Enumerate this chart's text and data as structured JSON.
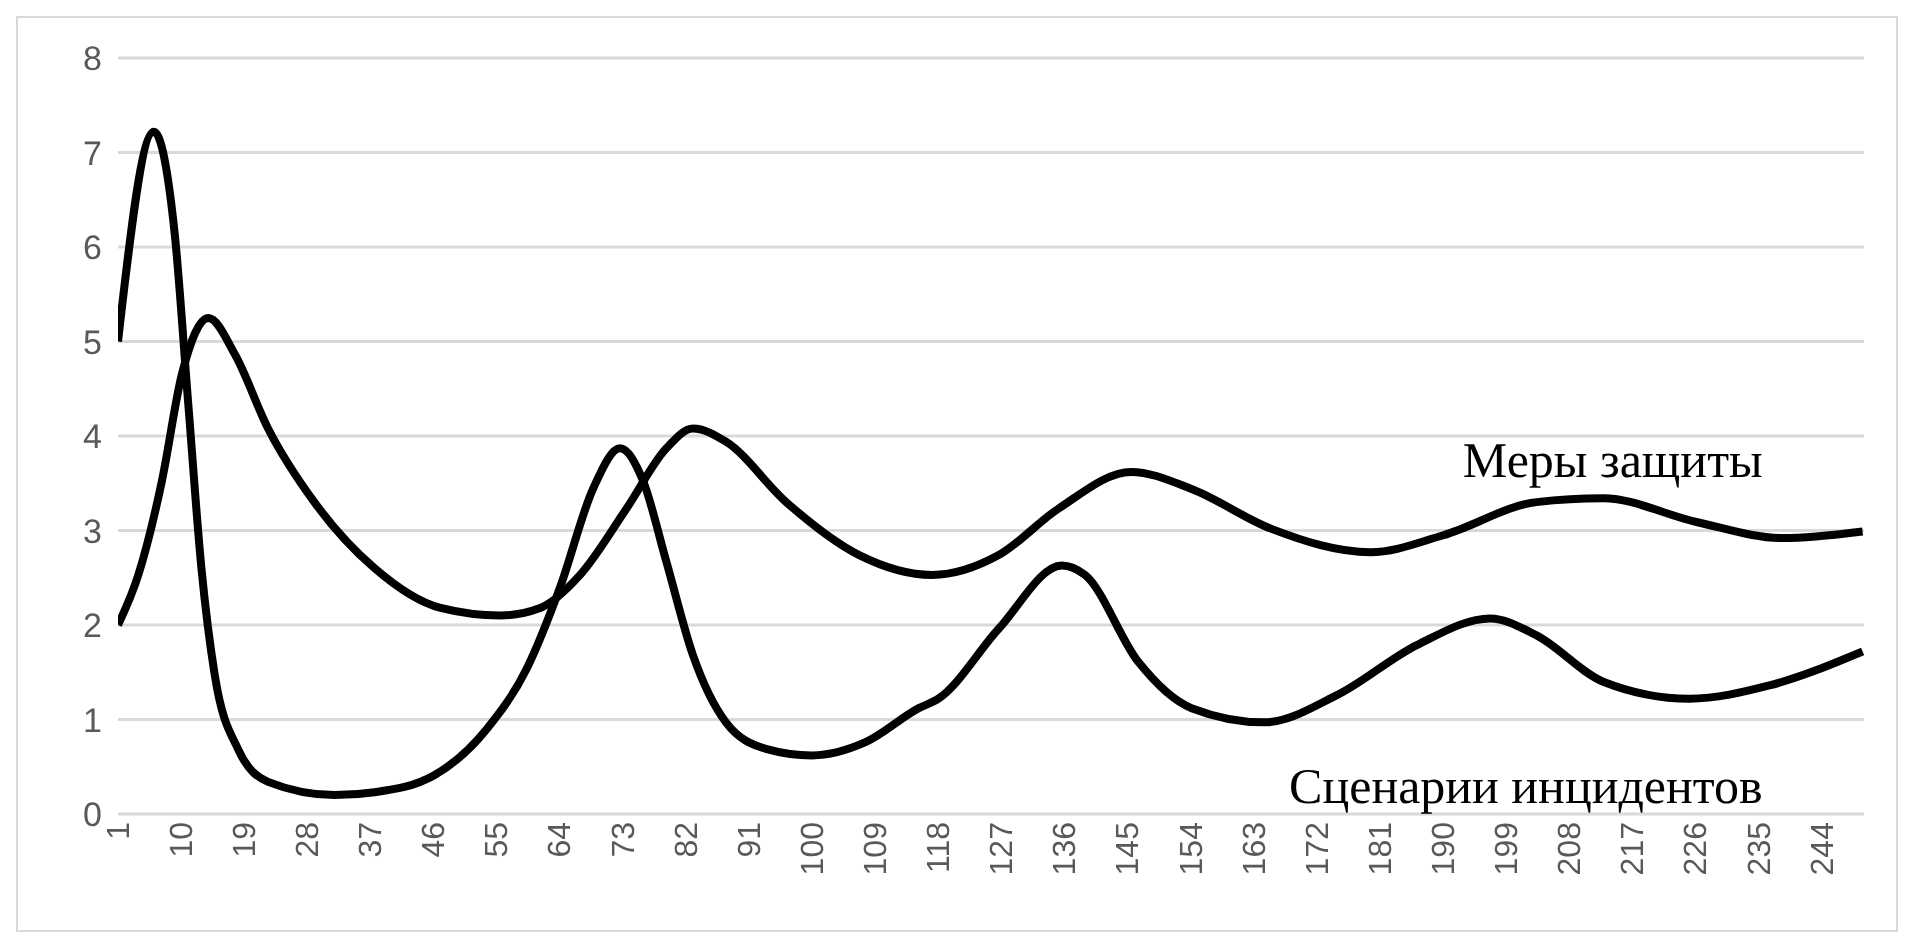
{
  "chart_data": {
    "type": "line",
    "xlim": [
      1,
      250
    ],
    "xticks": [
      1,
      10,
      19,
      28,
      37,
      46,
      55,
      64,
      73,
      82,
      91,
      100,
      109,
      118,
      127,
      136,
      145,
      154,
      163,
      172,
      181,
      190,
      199,
      208,
      217,
      226,
      235,
      244
    ],
    "ylim": [
      0,
      8
    ],
    "yticks": [
      0,
      1,
      2,
      3,
      4,
      5,
      6,
      7,
      8
    ],
    "grid": "y",
    "legend": false,
    "marker": "none",
    "line_style": "solid",
    "series": [
      {
        "name": "Сценарии инцидентов",
        "color": "#000000",
        "x": [
          1,
          6.1,
          9.1,
          11,
          12.9,
          14.8,
          18.1,
          22.4,
          31.9,
          37.6,
          46.1,
          53.6,
          59.3,
          64,
          68.8,
          72.6,
          75.9,
          79.2,
          83,
          87.7,
          93.4,
          100,
          107.6,
          115.2,
          118,
          126.6,
          135.6,
          138.9,
          146.5,
          154.1,
          164.5,
          174.9,
          186.3,
          196.7,
          203.3,
          212.8,
          225.1,
          236.5,
          249.8
        ],
        "values": [
          5.0,
          7.22,
          6.13,
          4.36,
          2.6,
          1.47,
          0.69,
          0.34,
          0.2,
          0.23,
          0.41,
          0.9,
          1.54,
          2.39,
          3.45,
          3.87,
          3.52,
          2.67,
          1.68,
          0.97,
          0.69,
          0.62,
          0.76,
          1.12,
          1.22,
          1.96,
          2.63,
          2.53,
          1.61,
          1.12,
          0.97,
          1.26,
          1.79,
          2.07,
          1.89,
          1.4,
          1.22,
          1.36,
          1.72
        ]
      },
      {
        "name": "Меры защиты",
        "color": "#000000",
        "x": [
          1,
          3.9,
          7.25,
          10.1,
          13.9,
          17.7,
          22.4,
          29,
          37.6,
          47,
          55.5,
          61.2,
          66.9,
          73.5,
          79.2,
          83,
          87.7,
          96.3,
          106.7,
          117.1,
          126.6,
          135.1,
          145.5,
          154.1,
          165.4,
          179.6,
          190,
          203.3,
          212.8,
          226.1,
          238.4,
          249.8
        ],
        "values": [
          2.0,
          2.53,
          3.52,
          4.65,
          5.25,
          4.86,
          4.08,
          3.3,
          2.6,
          2.18,
          2.1,
          2.18,
          2.53,
          3.23,
          3.87,
          4.08,
          3.94,
          3.3,
          2.74,
          2.53,
          2.74,
          3.23,
          3.62,
          3.44,
          3.02,
          2.77,
          2.95,
          3.3,
          3.34,
          3.09,
          2.92,
          2.99
        ]
      }
    ]
  }
}
